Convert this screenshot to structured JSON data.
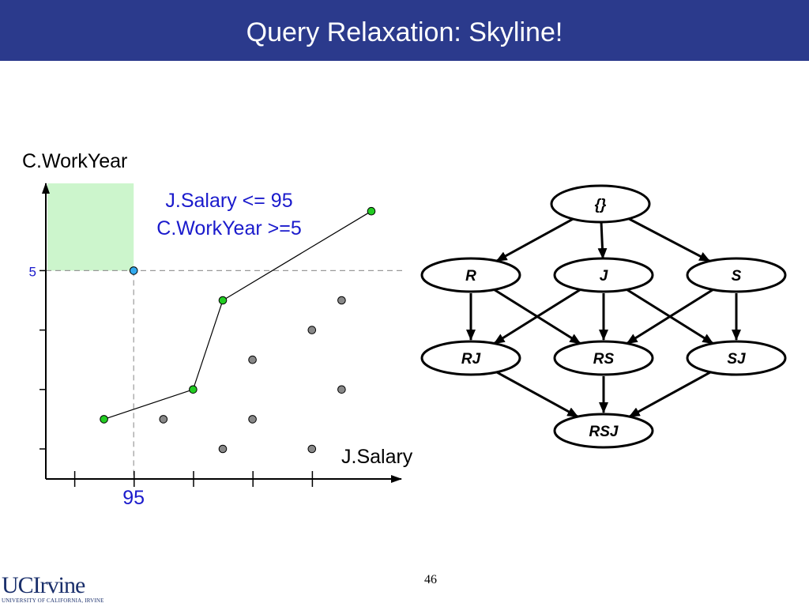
{
  "slide": {
    "title": "Query Relaxation: Skyline!",
    "page_number": "46",
    "logo_main": "UCIrvine",
    "logo_sub": "UNIVERSITY OF CALIFORNIA, IRVINE"
  },
  "colors": {
    "title_bar": "#2b3a8c",
    "region_fill": "#ccf5cc",
    "skyline_point": "#22cc22",
    "query_point": "#33aaee",
    "other_point": "#888888",
    "annotation_text": "#1a1acc"
  },
  "chart_data": {
    "type": "scatter",
    "xlabel": "J.Salary",
    "ylabel": "C.WorkYear",
    "query_conditions": [
      "J.Salary <= 95",
      "C.WorkYear >=5"
    ],
    "threshold": {
      "x": 95,
      "y": 5,
      "x_label": "95",
      "y_label": "5"
    },
    "series": [
      {
        "name": "",
        "role": "skyline",
        "points": [
          [
            1,
            1
          ],
          [
            4,
            2
          ],
          [
            5,
            5
          ],
          [
            10,
            8
          ]
        ]
      },
      {
        "name": "",
        "role": "query-point",
        "points": [
          [
            2,
            6
          ]
        ]
      },
      {
        "name": "",
        "role": "other",
        "points": [
          [
            3,
            1
          ],
          [
            5,
            0
          ],
          [
            6,
            1
          ],
          [
            6,
            3
          ],
          [
            8,
            0
          ],
          [
            8,
            4
          ],
          [
            9,
            2
          ],
          [
            9,
            5
          ]
        ]
      }
    ]
  },
  "lattice": {
    "nodes": [
      {
        "id": "empty",
        "label": "{}"
      },
      {
        "id": "R",
        "label": "R"
      },
      {
        "id": "J",
        "label": "J"
      },
      {
        "id": "S",
        "label": "S"
      },
      {
        "id": "RJ",
        "label": "RJ"
      },
      {
        "id": "RS",
        "label": "RS"
      },
      {
        "id": "SJ",
        "label": "SJ"
      },
      {
        "id": "RSJ",
        "label": "RSJ"
      }
    ],
    "edges": [
      [
        "empty",
        "R"
      ],
      [
        "empty",
        "J"
      ],
      [
        "empty",
        "S"
      ],
      [
        "R",
        "RJ"
      ],
      [
        "R",
        "RS"
      ],
      [
        "J",
        "RJ"
      ],
      [
        "J",
        "RS"
      ],
      [
        "J",
        "SJ"
      ],
      [
        "S",
        "RS"
      ],
      [
        "S",
        "SJ"
      ],
      [
        "RJ",
        "RSJ"
      ],
      [
        "RS",
        "RSJ"
      ],
      [
        "SJ",
        "RSJ"
      ]
    ]
  }
}
